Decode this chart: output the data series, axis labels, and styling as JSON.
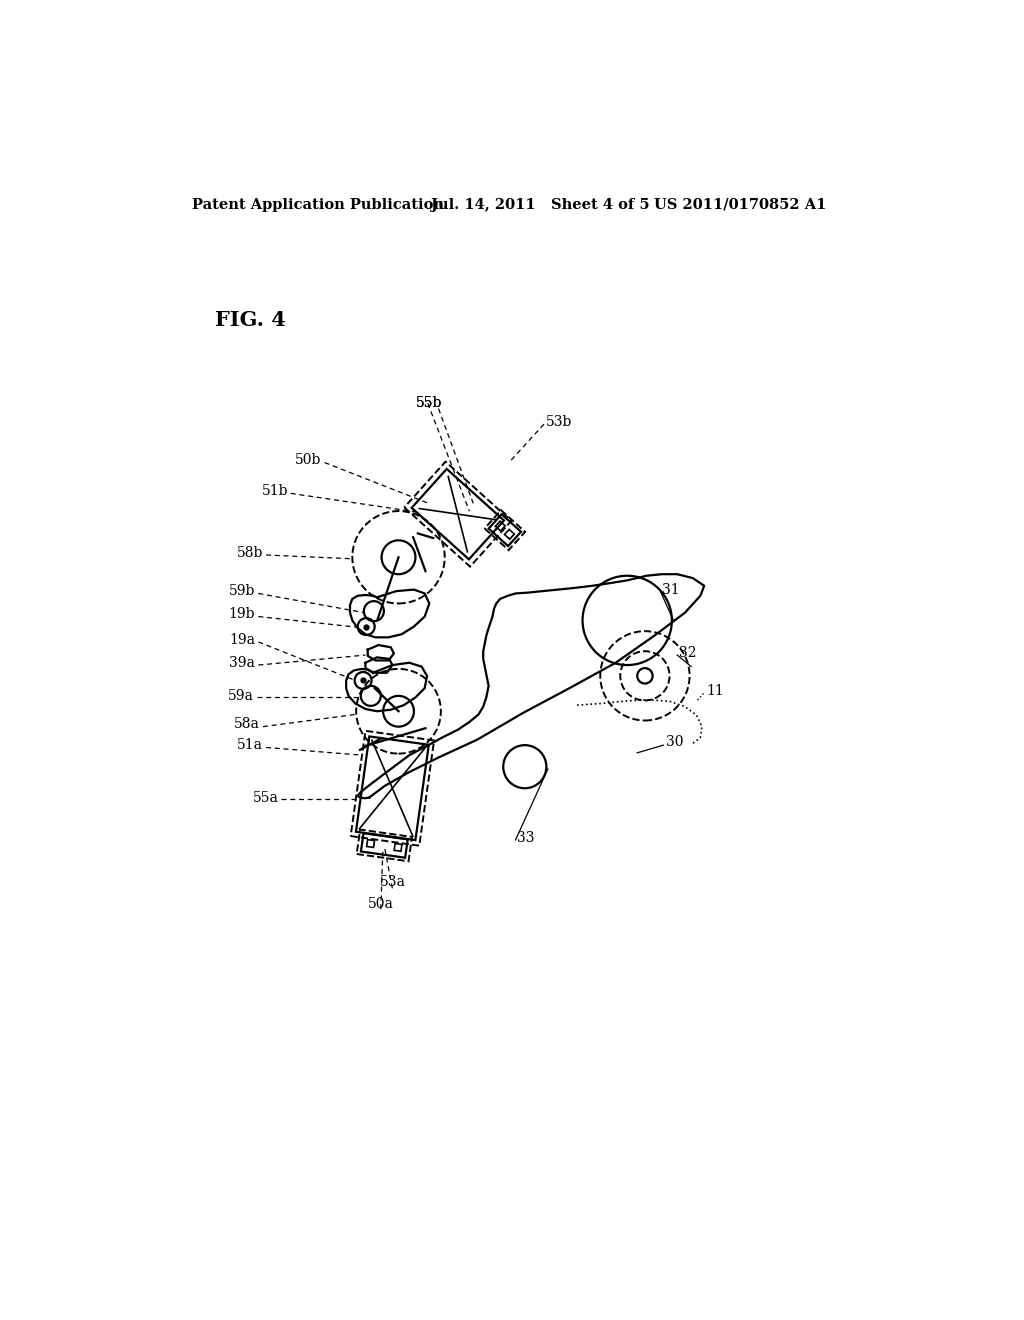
{
  "bg_color": "#ffffff",
  "header_left": "Patent Application Publication",
  "header_mid": "Jul. 14, 2011   Sheet 4 of 5",
  "header_right": "US 2011/0170852 A1",
  "fig_label": "FIG. 4"
}
